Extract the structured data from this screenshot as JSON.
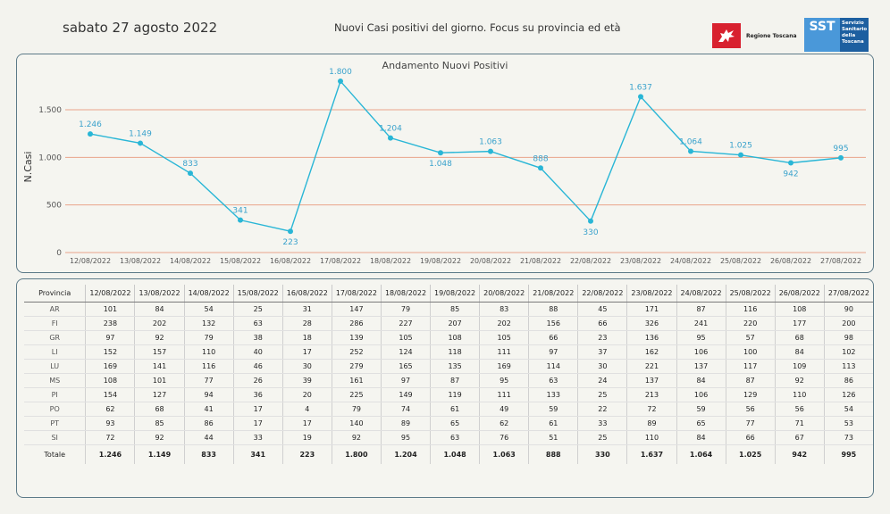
{
  "header": {
    "date": "sabato 27 agosto 2022",
    "title": "Nuovi Casi positivi del giorno. Focus su provincia ed età",
    "logo_regione": "Regione Toscana",
    "logo_sst_short": "SST",
    "logo_sst_lines": [
      "Servizio",
      "Sanitario",
      "della",
      "Toscana"
    ]
  },
  "chart_data": {
    "type": "line",
    "title": "Andamento Nuovi Positivi",
    "ylabel": "N.Casi",
    "xlabel": "",
    "categories": [
      "12/08/2022",
      "13/08/2022",
      "14/08/2022",
      "15/08/2022",
      "16/08/2022",
      "17/08/2022",
      "18/08/2022",
      "19/08/2022",
      "20/08/2022",
      "21/08/2022",
      "22/08/2022",
      "23/08/2022",
      "24/08/2022",
      "25/08/2022",
      "26/08/2022",
      "27/08/2022"
    ],
    "series": [
      {
        "values": [
          1246,
          1149,
          833,
          341,
          223,
          1800,
          1204,
          1048,
          1063,
          888,
          330,
          1637,
          1064,
          1025,
          942,
          995
        ]
      }
    ],
    "value_labels": [
      "1.246",
      "1.149",
      "833",
      "341",
      "223",
      "1.800",
      "1.204",
      "1.048",
      "1.063",
      "888",
      "330",
      "1.637",
      "1.064",
      "1.025",
      "942",
      "995"
    ],
    "yticks": [
      0,
      500,
      1000,
      1500
    ],
    "ytick_labels": [
      "0",
      "500",
      "1.000",
      "1.500"
    ],
    "ylim": [
      0,
      1800
    ],
    "grid": true,
    "line_color": "#29b6d6",
    "grid_color": "#e9a48a"
  },
  "table": {
    "header_label": "Provincia",
    "dates": [
      "12/08/2022",
      "13/08/2022",
      "14/08/2022",
      "15/08/2022",
      "16/08/2022",
      "17/08/2022",
      "18/08/2022",
      "19/08/2022",
      "20/08/2022",
      "21/08/2022",
      "22/08/2022",
      "23/08/2022",
      "24/08/2022",
      "25/08/2022",
      "26/08/2022",
      "27/08/2022"
    ],
    "rows": [
      {
        "prov": "AR",
        "values": [
          "101",
          "84",
          "54",
          "25",
          "31",
          "147",
          "79",
          "85",
          "83",
          "88",
          "45",
          "171",
          "87",
          "116",
          "108",
          "90"
        ]
      },
      {
        "prov": "FI",
        "values": [
          "238",
          "202",
          "132",
          "63",
          "28",
          "286",
          "227",
          "207",
          "202",
          "156",
          "66",
          "326",
          "241",
          "220",
          "177",
          "200"
        ]
      },
      {
        "prov": "GR",
        "values": [
          "97",
          "92",
          "79",
          "38",
          "18",
          "139",
          "105",
          "108",
          "105",
          "66",
          "23",
          "136",
          "95",
          "57",
          "68",
          "98"
        ]
      },
      {
        "prov": "LI",
        "values": [
          "152",
          "157",
          "110",
          "40",
          "17",
          "252",
          "124",
          "118",
          "111",
          "97",
          "37",
          "162",
          "106",
          "100",
          "84",
          "102"
        ]
      },
      {
        "prov": "LU",
        "values": [
          "169",
          "141",
          "116",
          "46",
          "30",
          "279",
          "165",
          "135",
          "169",
          "114",
          "30",
          "221",
          "137",
          "117",
          "109",
          "113"
        ]
      },
      {
        "prov": "MS",
        "values": [
          "108",
          "101",
          "77",
          "26",
          "39",
          "161",
          "97",
          "87",
          "95",
          "63",
          "24",
          "137",
          "84",
          "87",
          "92",
          "86"
        ]
      },
      {
        "prov": "PI",
        "values": [
          "154",
          "127",
          "94",
          "36",
          "20",
          "225",
          "149",
          "119",
          "111",
          "133",
          "25",
          "213",
          "106",
          "129",
          "110",
          "126"
        ]
      },
      {
        "prov": "PO",
        "values": [
          "62",
          "68",
          "41",
          "17",
          "4",
          "79",
          "74",
          "61",
          "49",
          "59",
          "22",
          "72",
          "59",
          "56",
          "56",
          "54"
        ]
      },
      {
        "prov": "PT",
        "values": [
          "93",
          "85",
          "86",
          "17",
          "17",
          "140",
          "89",
          "65",
          "62",
          "61",
          "33",
          "89",
          "65",
          "77",
          "71",
          "53"
        ]
      },
      {
        "prov": "SI",
        "values": [
          "72",
          "92",
          "44",
          "33",
          "19",
          "92",
          "95",
          "63",
          "76",
          "51",
          "25",
          "110",
          "84",
          "66",
          "67",
          "73"
        ]
      }
    ],
    "total": {
      "prov": "Totale",
      "values": [
        "1.246",
        "1.149",
        "833",
        "341",
        "223",
        "1.800",
        "1.204",
        "1.048",
        "1.063",
        "888",
        "330",
        "1.637",
        "1.064",
        "1.025",
        "942",
        "995"
      ]
    }
  }
}
